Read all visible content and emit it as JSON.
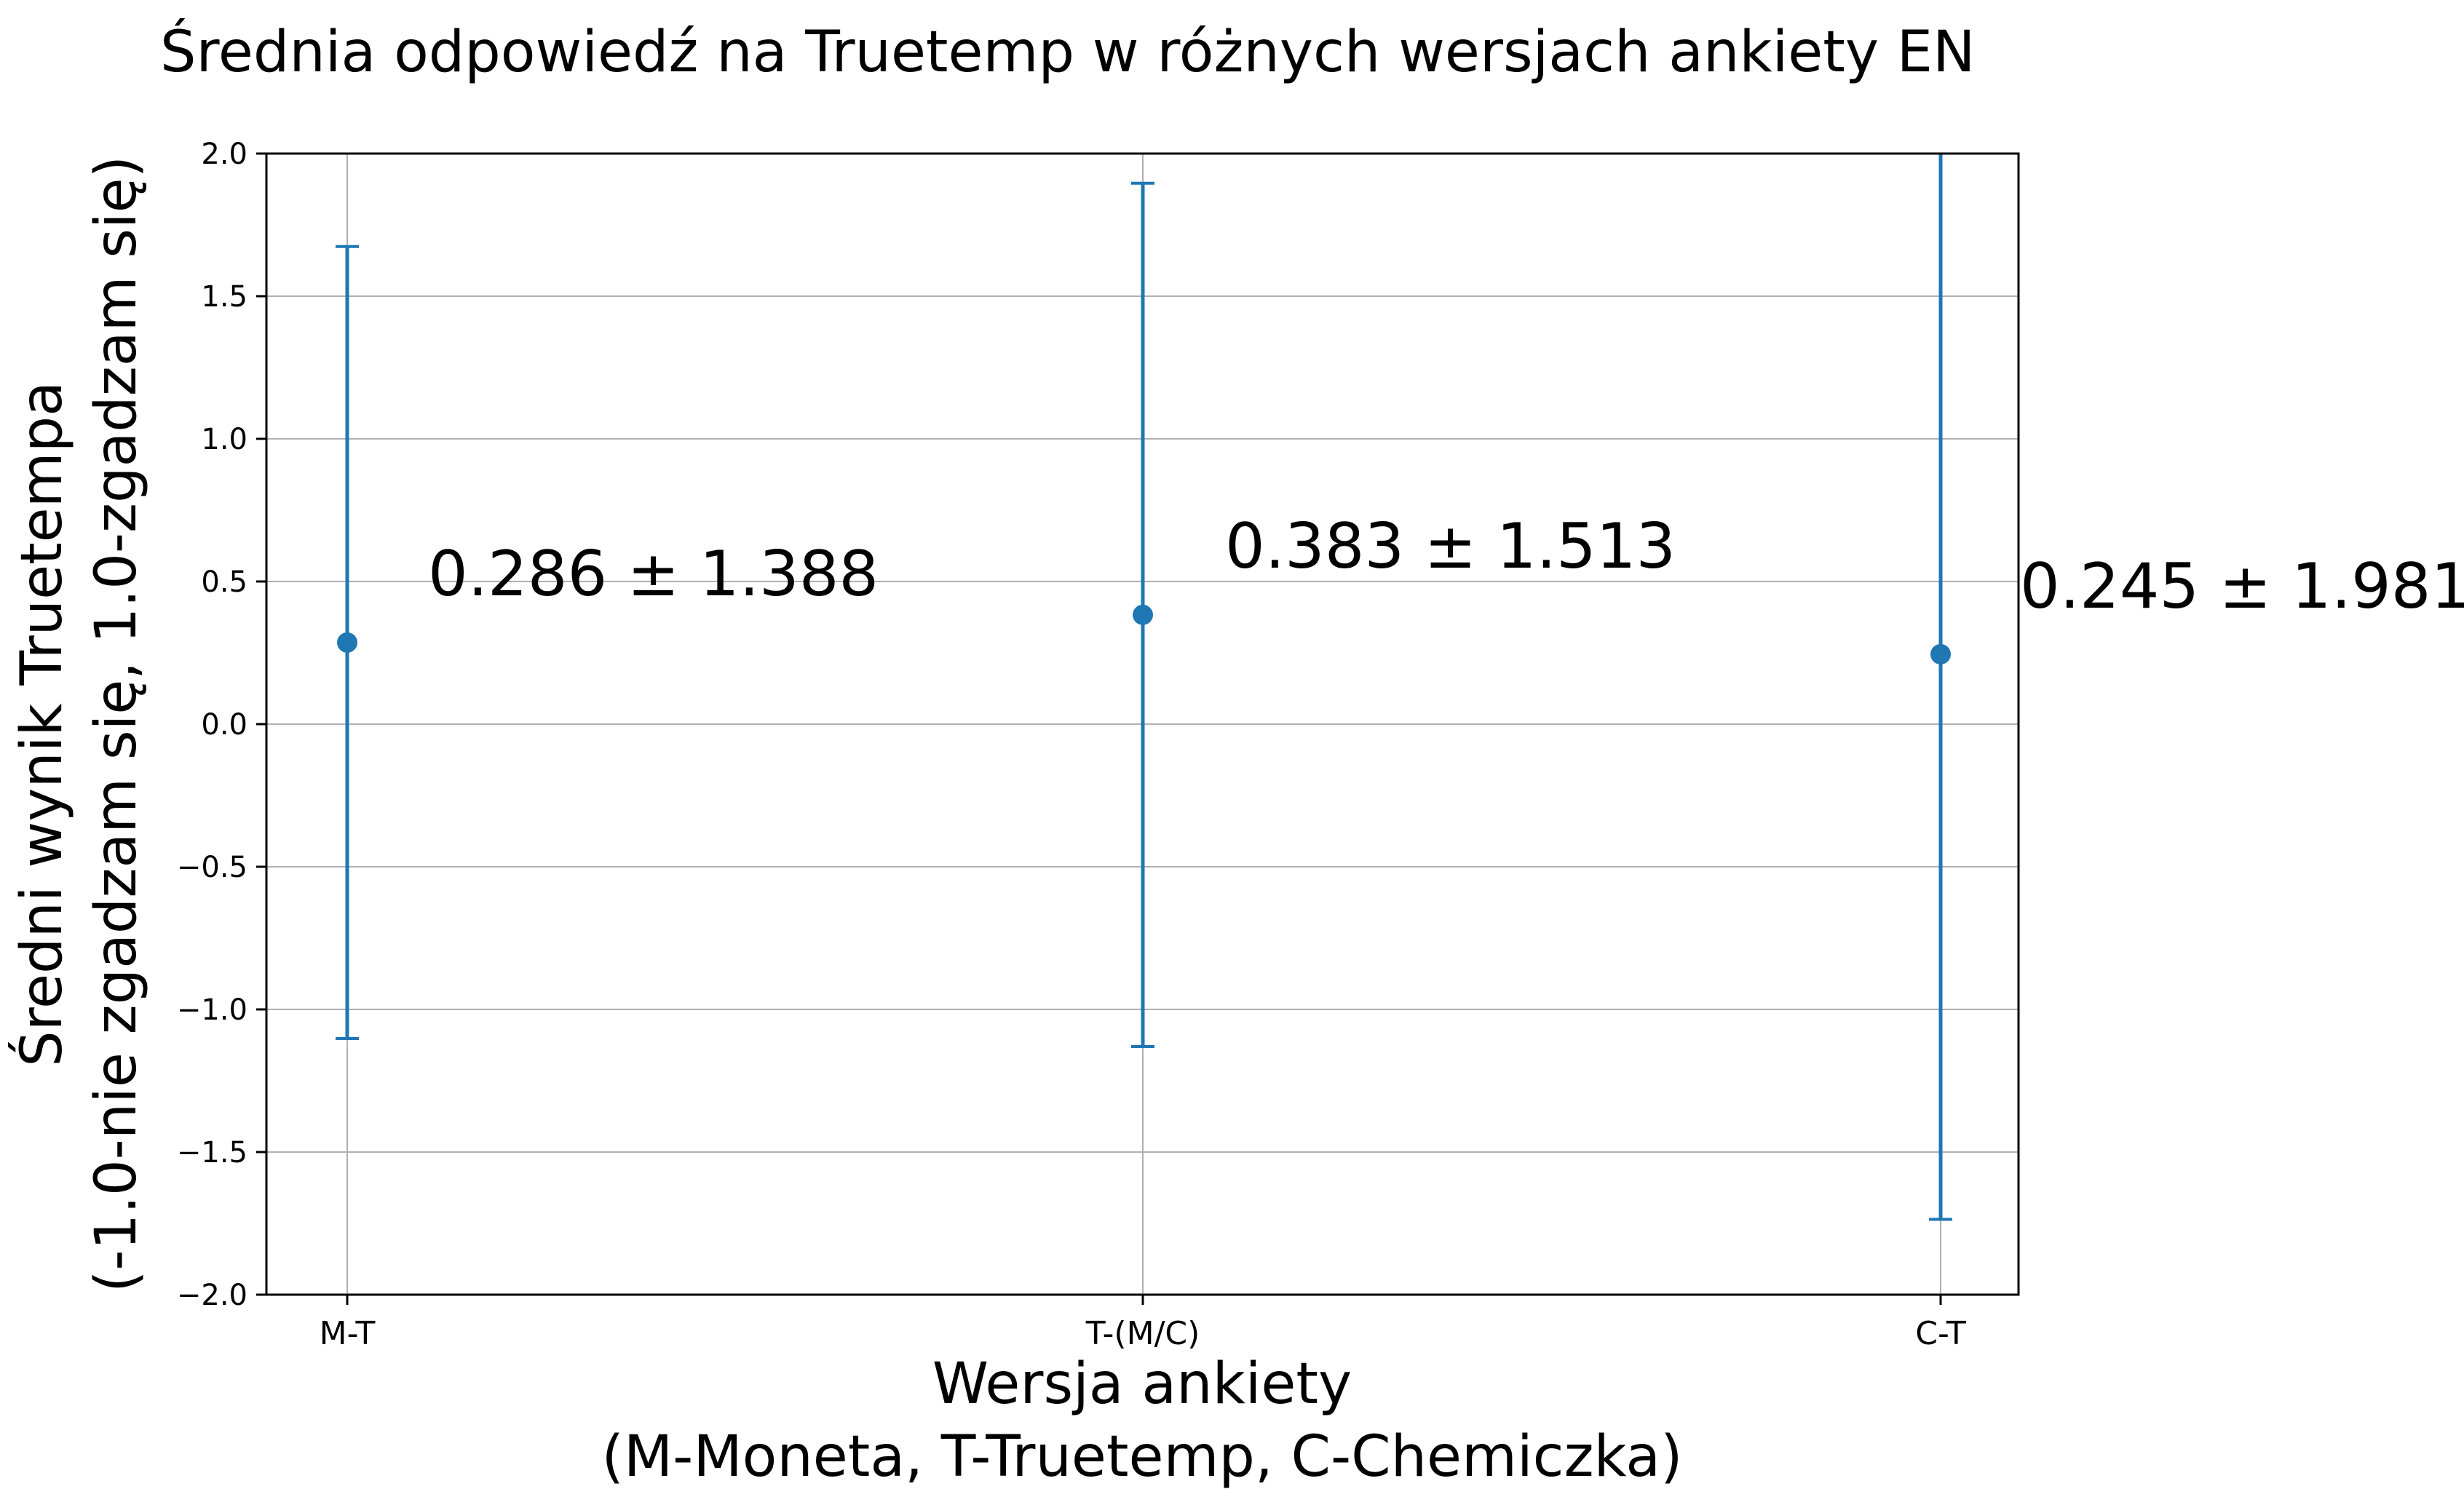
{
  "chart_data": {
    "type": "errorbar",
    "title": "Średnia odpowiedź na Truetemp w różnych wersjach ankiety EN",
    "xlabel_lines": [
      "Wersja ankiety",
      "(M-Moneta, T-Truetemp, C-Chemiczka)"
    ],
    "ylabel_lines": [
      "Średni wynik Truetempa",
      "(-1.0-nie zgadzam się, 1.0-zgadzam się)"
    ],
    "categories": [
      "M-T",
      "T-(M/C)",
      "C-T"
    ],
    "means": [
      0.286,
      0.383,
      0.245
    ],
    "errors": [
      1.388,
      1.513,
      1.981
    ],
    "annotations": [
      "0.286 ± 1.388",
      "0.383 ± 1.513",
      "0.245 ± 1.981"
    ],
    "ylim": [
      -2.0,
      2.0
    ],
    "yticks": [
      2.0,
      1.5,
      1.0,
      0.5,
      0.0,
      -0.5,
      -1.0,
      -1.5,
      -2.0
    ],
    "ytick_labels": [
      "2.0",
      "1.5",
      "1.0",
      "0.5",
      "0.0",
      "−0.5",
      "−1.0",
      "−1.5",
      "−2.0"
    ],
    "grid": true,
    "series_color": "#1f77b4",
    "grid_color": "#b0b0b0"
  }
}
